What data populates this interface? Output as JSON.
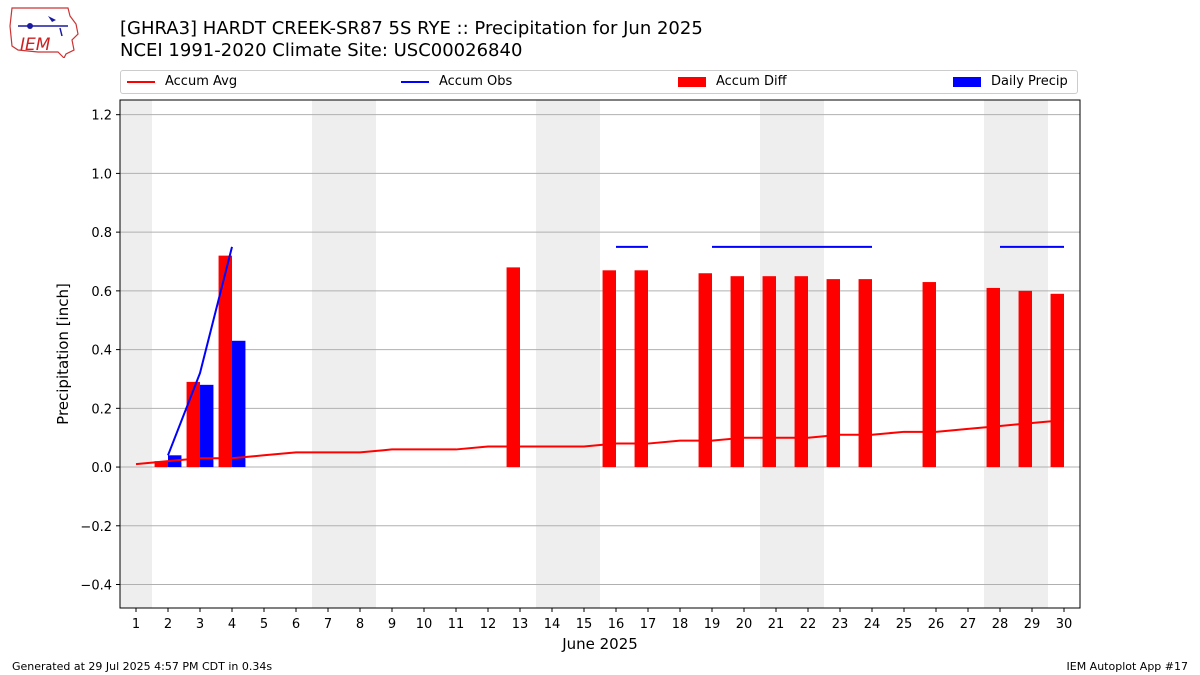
{
  "header": {
    "title_line1": "[GHRA3] HARDT CREEK-SR87 5S RYE :: Precipitation for Jun 2025",
    "title_line2": "NCEI 1991-2020 Climate Site: USC00026840",
    "logo_text": "IEM"
  },
  "legend": [
    {
      "label": "Accum Avg",
      "color": "#ff0000",
      "symbol": "line"
    },
    {
      "label": "Accum Obs",
      "color": "#0000ff",
      "symbol": "line"
    },
    {
      "label": "Accum Diff",
      "color": "#ff0000",
      "symbol": "box"
    },
    {
      "label": "Daily Precip",
      "color": "#0000ff",
      "symbol": "box"
    }
  ],
  "footer": {
    "left": "Generated at 29 Jul 2025 4:57 PM CDT in 0.34s",
    "right": "IEM Autoplot App #17"
  },
  "colors": {
    "avg": "#ff0000",
    "obs": "#0000ff",
    "diff": "#ff0000",
    "daily": "#0000ff",
    "weekend": "#eeeeee",
    "grid": "#b0b0b0"
  },
  "chart_data": {
    "type": "bar",
    "xlabel": "June 2025",
    "ylabel": "Precipitation [inch]",
    "xlim": [
      0.5,
      30.5
    ],
    "ylim": [
      -0.48,
      1.25
    ],
    "yticks": [
      -0.4,
      -0.2,
      0.0,
      0.2,
      0.4,
      0.6,
      0.8,
      1.0,
      1.2
    ],
    "ytick_labels": [
      "−0.4",
      "−0.2",
      "0.0",
      "0.2",
      "0.4",
      "0.6",
      "0.8",
      "1.0",
      "1.2"
    ],
    "days": [
      1,
      2,
      3,
      4,
      5,
      6,
      7,
      8,
      9,
      10,
      11,
      12,
      13,
      14,
      15,
      16,
      17,
      18,
      19,
      20,
      21,
      22,
      23,
      24,
      25,
      26,
      27,
      28,
      29,
      30
    ],
    "weekend_spans": [
      [
        0.5,
        1.5
      ],
      [
        6.5,
        8.5
      ],
      [
        13.5,
        15.5
      ],
      [
        20.5,
        22.5
      ],
      [
        27.5,
        29.5
      ]
    ],
    "accum_avg": [
      0.01,
      0.02,
      0.03,
      0.03,
      0.04,
      0.05,
      0.05,
      0.05,
      0.06,
      0.06,
      0.06,
      0.07,
      0.07,
      0.07,
      0.07,
      0.08,
      0.08,
      0.09,
      0.09,
      0.1,
      0.1,
      0.1,
      0.11,
      0.11,
      0.12,
      0.12,
      0.13,
      0.14,
      0.15,
      0.16
    ],
    "accum_obs_segments": [
      {
        "x": [
          2,
          3,
          4
        ],
        "y": [
          0.04,
          0.32,
          0.75
        ]
      },
      {
        "x": [
          16,
          17
        ],
        "y": [
          0.75,
          0.75
        ]
      },
      {
        "x": [
          19,
          20,
          21,
          22,
          23,
          24
        ],
        "y": [
          0.75,
          0.75,
          0.75,
          0.75,
          0.75,
          0.75
        ]
      },
      {
        "x": [
          28,
          29,
          30
        ],
        "y": [
          0.75,
          0.75,
          0.75
        ]
      }
    ],
    "accum_diff": [
      {
        "day": 2,
        "value": 0.02
      },
      {
        "day": 3,
        "value": 0.29
      },
      {
        "day": 4,
        "value": 0.72
      },
      {
        "day": 13,
        "value": 0.68
      },
      {
        "day": 16,
        "value": 0.67
      },
      {
        "day": 17,
        "value": 0.67
      },
      {
        "day": 19,
        "value": 0.66
      },
      {
        "day": 20,
        "value": 0.65
      },
      {
        "day": 21,
        "value": 0.65
      },
      {
        "day": 22,
        "value": 0.65
      },
      {
        "day": 23,
        "value": 0.64
      },
      {
        "day": 24,
        "value": 0.64
      },
      {
        "day": 26,
        "value": 0.63
      },
      {
        "day": 28,
        "value": 0.61
      },
      {
        "day": 29,
        "value": 0.6
      },
      {
        "day": 30,
        "value": 0.59
      }
    ],
    "daily_precip": [
      {
        "day": 2,
        "value": 0.04
      },
      {
        "day": 3,
        "value": 0.28
      },
      {
        "day": 4,
        "value": 0.43
      }
    ],
    "grid": "y"
  }
}
